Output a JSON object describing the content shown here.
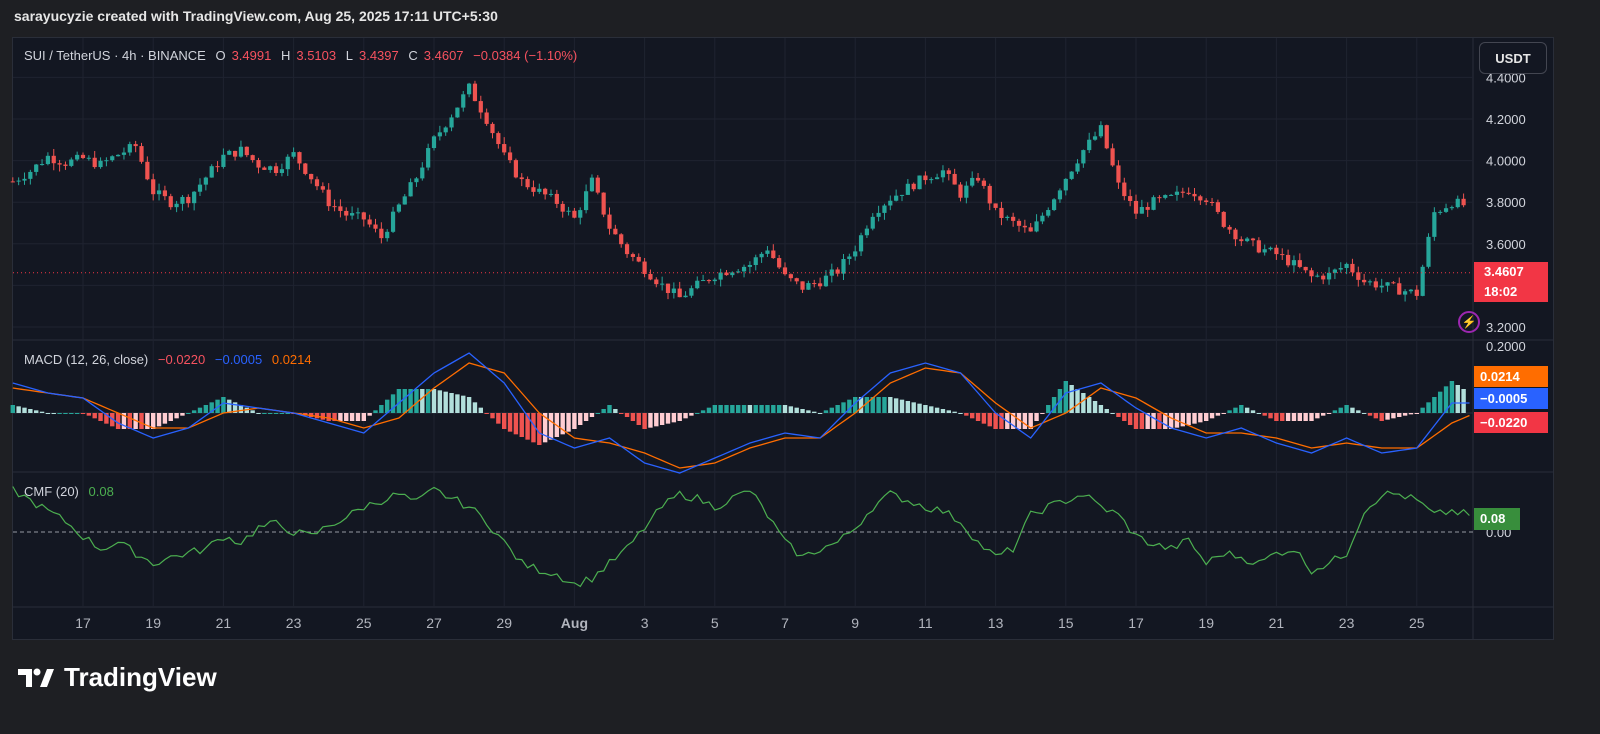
{
  "header": {
    "attribution": "sarayucyzie created with TradingView.com, Aug 25, 2025 17:11 UTC+5:30"
  },
  "legend": {
    "symbol": "SUI / TetherUS · 4h · BINANCE",
    "open_label": "O",
    "open": "3.4991",
    "high_label": "H",
    "high": "3.5103",
    "low_label": "L",
    "low": "3.4397",
    "close_label": "C",
    "close": "3.4607",
    "change": "−0.0384 (−1.10%)"
  },
  "currency_button": "USDT",
  "price_tag": {
    "price": "3.4607",
    "countdown": "18:02"
  },
  "macd": {
    "title": "MACD (12, 26, close)",
    "histogram": "−0.0220",
    "macd": "−0.0005",
    "signal": "0.0214",
    "tags": [
      "0.0214",
      "−0.0005",
      "−0.0220"
    ]
  },
  "cmf": {
    "title": "CMF (20)",
    "value": "0.08",
    "tag": "0.08"
  },
  "brand": "TradingView",
  "colors": {
    "up": "#26a69a",
    "down": "#ef5350",
    "macd_line": "#2962ff",
    "signal_line": "#ff6d00",
    "cmf": "#4caf50",
    "background": "#131722"
  },
  "chart_data": [
    {
      "type": "candlestick",
      "title": "SUI / TetherUS · 4h · BINANCE",
      "x_ticks": [
        "17",
        "19",
        "21",
        "23",
        "25",
        "27",
        "29",
        "Aug",
        "3",
        "5",
        "7",
        "9",
        "11",
        "13",
        "15",
        "17",
        "19",
        "21",
        "23",
        "25"
      ],
      "y_ticks": [
        "3.2000",
        "3.4000",
        "3.6000",
        "3.8000",
        "4.0000",
        "4.2000",
        "4.4000"
      ],
      "ylim": [
        3.2,
        4.4
      ],
      "last_close": 3.4607,
      "close_path": [
        [
          15.0,
          3.9
        ],
        [
          15.5,
          3.95
        ],
        [
          16.0,
          4.02
        ],
        [
          16.5,
          3.99
        ],
        [
          17.0,
          4.01
        ],
        [
          17.5,
          3.98
        ],
        [
          18.0,
          4.03
        ],
        [
          18.5,
          4.07
        ],
        [
          19.0,
          3.85
        ],
        [
          19.5,
          3.8
        ],
        [
          20.0,
          3.82
        ],
        [
          20.5,
          3.92
        ],
        [
          21.0,
          4.02
        ],
        [
          21.5,
          4.05
        ],
        [
          22.0,
          3.98
        ],
        [
          22.5,
          3.96
        ],
        [
          23.0,
          4.03
        ],
        [
          23.5,
          3.92
        ],
        [
          24.0,
          3.8
        ],
        [
          24.5,
          3.74
        ],
        [
          25.0,
          3.72
        ],
        [
          25.5,
          3.63
        ],
        [
          26.0,
          3.78
        ],
        [
          26.5,
          3.92
        ],
        [
          27.0,
          4.1
        ],
        [
          27.5,
          4.22
        ],
        [
          28.0,
          4.35
        ],
        [
          28.5,
          4.2
        ],
        [
          29.0,
          4.02
        ],
        [
          29.5,
          3.9
        ],
        [
          30.0,
          3.85
        ],
        [
          30.5,
          3.8
        ],
        [
          31.0,
          3.72
        ],
        [
          31.5,
          3.9
        ],
        [
          32.0,
          3.68
        ],
        [
          32.5,
          3.56
        ],
        [
          33.0,
          3.48
        ],
        [
          33.5,
          3.4
        ],
        [
          34.0,
          3.34
        ],
        [
          34.5,
          3.4
        ],
        [
          35.0,
          3.45
        ],
        [
          35.5,
          3.48
        ],
        [
          36.0,
          3.5
        ],
        [
          36.5,
          3.58
        ],
        [
          37.0,
          3.44
        ],
        [
          37.5,
          3.39
        ],
        [
          38.0,
          3.42
        ],
        [
          38.5,
          3.47
        ],
        [
          39.0,
          3.58
        ],
        [
          39.5,
          3.75
        ],
        [
          40.0,
          3.82
        ],
        [
          40.5,
          3.87
        ],
        [
          41.0,
          3.92
        ],
        [
          41.5,
          3.95
        ],
        [
          42.0,
          3.84
        ],
        [
          42.5,
          3.92
        ],
        [
          43.0,
          3.75
        ],
        [
          43.5,
          3.7
        ],
        [
          44.0,
          3.65
        ],
        [
          44.5,
          3.78
        ],
        [
          45.0,
          3.92
        ],
        [
          45.5,
          4.05
        ],
        [
          46.0,
          4.15
        ],
        [
          46.5,
          3.88
        ],
        [
          47.0,
          3.75
        ],
        [
          47.5,
          3.8
        ],
        [
          48.0,
          3.82
        ],
        [
          48.5,
          3.86
        ],
        [
          49.0,
          3.82
        ],
        [
          49.5,
          3.7
        ],
        [
          50.0,
          3.62
        ],
        [
          50.5,
          3.58
        ],
        [
          51.0,
          3.55
        ],
        [
          51.5,
          3.5
        ],
        [
          52.0,
          3.44
        ],
        [
          52.5,
          3.45
        ],
        [
          53.0,
          3.5
        ],
        [
          53.5,
          3.42
        ],
        [
          54.0,
          3.4
        ],
        [
          54.5,
          3.38
        ],
        [
          55.0,
          3.36
        ],
        [
          55.5,
          3.75
        ],
        [
          56.0,
          3.8
        ],
        [
          56.5,
          3.78
        ],
        [
          57.0,
          3.75
        ],
        [
          57.5,
          3.7
        ],
        [
          58.0,
          3.68
        ],
        [
          58.5,
          3.73
        ],
        [
          58.7,
          3.72
        ],
        [
          59.0,
          3.46
        ]
      ]
    },
    {
      "type": "line",
      "title": "MACD (12, 26, close)",
      "series": [
        {
          "name": "MACD",
          "values_path": [
            [
              15.0,
              0.06
            ],
            [
              16.0,
              0.04
            ],
            [
              17.0,
              0.03
            ],
            [
              18.0,
              -0.02
            ],
            [
              19.0,
              -0.05
            ],
            [
              20.0,
              -0.03
            ],
            [
              21.0,
              0.02
            ],
            [
              22.0,
              0.01
            ],
            [
              23.0,
              0.0
            ],
            [
              24.0,
              -0.02
            ],
            [
              25.0,
              -0.04
            ],
            [
              26.0,
              0.02
            ],
            [
              27.0,
              0.08
            ],
            [
              28.0,
              0.12
            ],
            [
              29.0,
              0.06
            ],
            [
              30.0,
              -0.04
            ],
            [
              31.0,
              -0.07
            ],
            [
              32.0,
              -0.05
            ],
            [
              33.0,
              -0.1
            ],
            [
              34.0,
              -0.12
            ],
            [
              35.0,
              -0.09
            ],
            [
              36.0,
              -0.06
            ],
            [
              37.0,
              -0.04
            ],
            [
              38.0,
              -0.05
            ],
            [
              39.0,
              0.02
            ],
            [
              40.0,
              0.08
            ],
            [
              41.0,
              0.1
            ],
            [
              42.0,
              0.08
            ],
            [
              43.0,
              0.0
            ],
            [
              44.0,
              -0.05
            ],
            [
              45.0,
              0.04
            ],
            [
              46.0,
              0.06
            ],
            [
              47.0,
              0.01
            ],
            [
              48.0,
              -0.03
            ],
            [
              49.0,
              -0.05
            ],
            [
              50.0,
              -0.03
            ],
            [
              51.0,
              -0.06
            ],
            [
              52.0,
              -0.08
            ],
            [
              53.0,
              -0.05
            ],
            [
              54.0,
              -0.08
            ],
            [
              55.0,
              -0.07
            ],
            [
              56.0,
              0.02
            ],
            [
              57.0,
              0.02
            ],
            [
              58.0,
              0.01
            ],
            [
              59.0,
              -0.0005
            ]
          ]
        },
        {
          "name": "Signal",
          "values_path": [
            [
              15.0,
              0.05
            ],
            [
              16.0,
              0.04
            ],
            [
              17.0,
              0.03
            ],
            [
              18.0,
              0.0
            ],
            [
              19.0,
              -0.03
            ],
            [
              20.0,
              -0.03
            ],
            [
              21.0,
              0.0
            ],
            [
              22.0,
              0.01
            ],
            [
              23.0,
              0.0
            ],
            [
              24.0,
              -0.01
            ],
            [
              25.0,
              -0.03
            ],
            [
              26.0,
              -0.01
            ],
            [
              27.0,
              0.05
            ],
            [
              28.0,
              0.1
            ],
            [
              29.0,
              0.08
            ],
            [
              30.0,
              0.0
            ],
            [
              31.0,
              -0.05
            ],
            [
              32.0,
              -0.06
            ],
            [
              33.0,
              -0.08
            ],
            [
              34.0,
              -0.11
            ],
            [
              35.0,
              -0.1
            ],
            [
              36.0,
              -0.07
            ],
            [
              37.0,
              -0.05
            ],
            [
              38.0,
              -0.05
            ],
            [
              39.0,
              0.0
            ],
            [
              40.0,
              0.06
            ],
            [
              41.0,
              0.09
            ],
            [
              42.0,
              0.08
            ],
            [
              43.0,
              0.02
            ],
            [
              44.0,
              -0.03
            ],
            [
              45.0,
              0.0
            ],
            [
              46.0,
              0.05
            ],
            [
              47.0,
              0.03
            ],
            [
              48.0,
              -0.01
            ],
            [
              49.0,
              -0.04
            ],
            [
              50.0,
              -0.04
            ],
            [
              51.0,
              -0.05
            ],
            [
              52.0,
              -0.07
            ],
            [
              53.0,
              -0.06
            ],
            [
              54.0,
              -0.07
            ],
            [
              55.0,
              -0.07
            ],
            [
              56.0,
              -0.02
            ],
            [
              57.0,
              0.01
            ],
            [
              58.0,
              0.02
            ],
            [
              59.0,
              0.0214
            ]
          ]
        }
      ]
    },
    {
      "type": "line",
      "title": "CMF (20)",
      "ylim": [
        -0.3,
        0.25
      ],
      "y_ticks": [
        "0.00"
      ],
      "series": [
        {
          "name": "CMF",
          "values_path": [
            [
              15.0,
              0.2
            ],
            [
              15.5,
              0.15
            ],
            [
              16.0,
              0.1
            ],
            [
              16.5,
              0.05
            ],
            [
              17.0,
              -0.02
            ],
            [
              17.5,
              -0.08
            ],
            [
              18.0,
              -0.05
            ],
            [
              18.5,
              -0.1
            ],
            [
              19.0,
              -0.15
            ],
            [
              19.5,
              -0.12
            ],
            [
              20.0,
              -0.1
            ],
            [
              20.5,
              -0.08
            ],
            [
              21.0,
              -0.02
            ],
            [
              21.5,
              -0.05
            ],
            [
              22.0,
              0.02
            ],
            [
              22.5,
              0.04
            ],
            [
              23.0,
              0.0
            ],
            [
              23.5,
              -0.02
            ],
            [
              24.0,
              0.03
            ],
            [
              24.5,
              0.07
            ],
            [
              25.0,
              0.12
            ],
            [
              25.5,
              0.15
            ],
            [
              26.0,
              0.18
            ],
            [
              26.5,
              0.14
            ],
            [
              27.0,
              0.2
            ],
            [
              27.5,
              0.16
            ],
            [
              28.0,
              0.12
            ],
            [
              28.5,
              0.05
            ],
            [
              29.0,
              -0.05
            ],
            [
              29.5,
              -0.15
            ],
            [
              30.0,
              -0.18
            ],
            [
              30.5,
              -0.2
            ],
            [
              31.0,
              -0.25
            ],
            [
              31.5,
              -0.22
            ],
            [
              32.0,
              -0.15
            ],
            [
              32.5,
              -0.08
            ],
            [
              33.0,
              0.02
            ],
            [
              33.5,
              0.12
            ],
            [
              34.0,
              0.18
            ],
            [
              34.5,
              0.16
            ],
            [
              35.0,
              0.12
            ],
            [
              35.5,
              0.16
            ],
            [
              36.0,
              0.2
            ],
            [
              36.5,
              0.08
            ],
            [
              37.0,
              -0.05
            ],
            [
              37.5,
              -0.12
            ],
            [
              38.0,
              -0.08
            ],
            [
              38.5,
              -0.05
            ],
            [
              39.0,
              0.02
            ],
            [
              39.5,
              0.12
            ],
            [
              40.0,
              0.18
            ],
            [
              40.5,
              0.15
            ],
            [
              41.0,
              0.12
            ],
            [
              41.5,
              0.1
            ],
            [
              42.0,
              0.05
            ],
            [
              42.5,
              -0.05
            ],
            [
              43.0,
              -0.12
            ],
            [
              43.5,
              -0.08
            ],
            [
              44.0,
              0.08
            ],
            [
              44.5,
              0.12
            ],
            [
              45.0,
              0.15
            ],
            [
              45.5,
              0.18
            ],
            [
              46.0,
              0.12
            ],
            [
              46.5,
              0.08
            ],
            [
              47.0,
              -0.02
            ],
            [
              47.5,
              -0.06
            ],
            [
              48.0,
              -0.08
            ],
            [
              48.5,
              -0.04
            ],
            [
              49.0,
              -0.15
            ],
            [
              49.5,
              -0.1
            ],
            [
              50.0,
              -0.12
            ],
            [
              50.5,
              -0.15
            ],
            [
              51.0,
              -0.1
            ],
            [
              51.5,
              -0.08
            ],
            [
              52.0,
              -0.18
            ],
            [
              52.5,
              -0.15
            ],
            [
              53.0,
              -0.1
            ],
            [
              53.5,
              0.1
            ],
            [
              54.0,
              0.18
            ],
            [
              54.5,
              0.18
            ],
            [
              55.0,
              0.15
            ],
            [
              55.5,
              0.08
            ],
            [
              56.0,
              0.1
            ],
            [
              56.5,
              0.08
            ]
          ]
        }
      ]
    }
  ]
}
